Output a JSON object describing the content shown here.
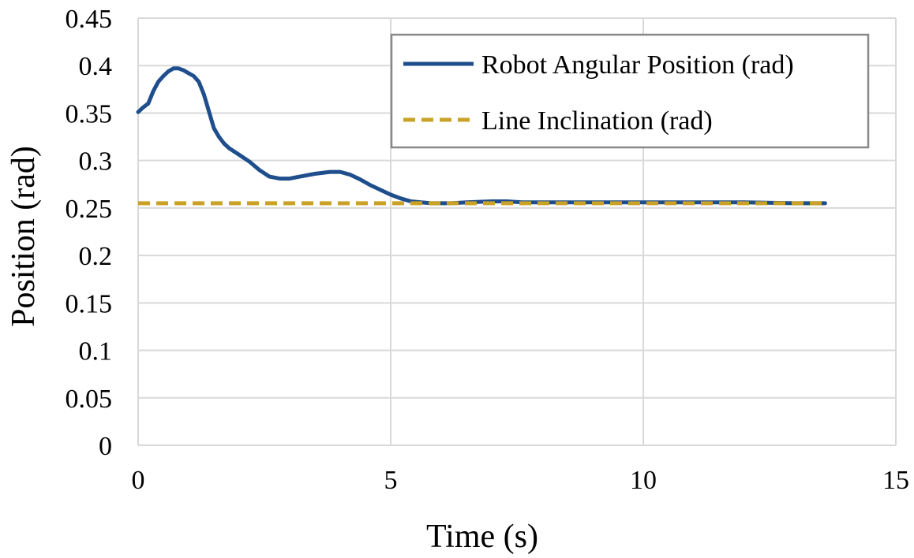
{
  "chart_data": {
    "type": "line",
    "xlabel": "Time (s)",
    "ylabel": "Position (rad)",
    "xlim": [
      0,
      15
    ],
    "ylim": [
      0,
      0.45
    ],
    "x_ticks": [
      0,
      5,
      10,
      15
    ],
    "x_tick_labels": [
      "0",
      "5",
      "10",
      "15"
    ],
    "y_ticks": [
      0,
      0.05,
      0.1,
      0.15,
      0.2,
      0.25,
      0.3,
      0.35,
      0.4,
      0.45
    ],
    "y_tick_labels": [
      "0",
      "0.05",
      "0.1",
      "0.15",
      "0.2",
      "0.25",
      "0.3",
      "0.35",
      "0.4",
      "0.45"
    ],
    "grid": true,
    "legend_position": "top-right",
    "series": [
      {
        "name": "Robot Angular Position (rad)",
        "color": "#1f4e8c",
        "style": "solid",
        "x": [
          0,
          0.1,
          0.2,
          0.3,
          0.4,
          0.5,
          0.6,
          0.7,
          0.8,
          0.9,
          1.0,
          1.1,
          1.2,
          1.3,
          1.4,
          1.5,
          1.6,
          1.7,
          1.8,
          2.0,
          2.2,
          2.4,
          2.6,
          2.8,
          3.0,
          3.2,
          3.5,
          3.8,
          4.0,
          4.2,
          4.4,
          4.6,
          4.8,
          5.0,
          5.2,
          5.4,
          5.6,
          5.8,
          6.0,
          6.2,
          6.5,
          7.0,
          7.3,
          7.6,
          8.0,
          9.0,
          10.0,
          11.0,
          12.0,
          13.0,
          13.6
        ],
        "y": [
          0.351,
          0.356,
          0.36,
          0.373,
          0.383,
          0.389,
          0.394,
          0.397,
          0.397,
          0.395,
          0.392,
          0.389,
          0.383,
          0.37,
          0.352,
          0.334,
          0.325,
          0.318,
          0.313,
          0.306,
          0.299,
          0.29,
          0.283,
          0.281,
          0.281,
          0.283,
          0.286,
          0.288,
          0.288,
          0.285,
          0.28,
          0.274,
          0.269,
          0.264,
          0.26,
          0.257,
          0.256,
          0.255,
          0.255,
          0.255,
          0.256,
          0.257,
          0.257,
          0.256,
          0.256,
          0.256,
          0.256,
          0.256,
          0.256,
          0.255,
          0.255
        ]
      },
      {
        "name": "Line Inclination (rad)",
        "color": "#c9a227",
        "style": "dashed",
        "x": [
          0,
          13.6
        ],
        "y": [
          0.255,
          0.255
        ]
      }
    ]
  }
}
